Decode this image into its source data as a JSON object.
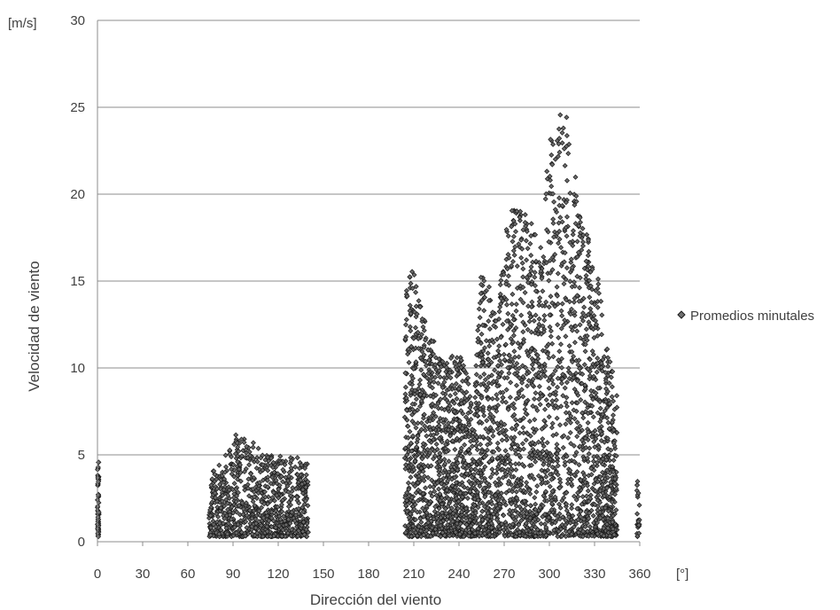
{
  "chart_data": {
    "type": "scatter",
    "xlabel": "Dirección del viento",
    "ylabel": "Velocidad de viento",
    "x_unit": "[°]",
    "y_unit": "[m/s]",
    "xlim": [
      0,
      360
    ],
    "ylim": [
      0,
      30
    ],
    "x_ticks": [
      "0",
      "30",
      "60",
      "90",
      "120",
      "150",
      "180",
      "210",
      "240",
      "270",
      "300",
      "330",
      "360"
    ],
    "y_ticks": [
      "0",
      "5",
      "10",
      "15",
      "20",
      "25",
      "30"
    ],
    "grid": "horizontal",
    "legend_position": "right",
    "marker_color": "#1a1a1a",
    "series": [
      {
        "name": "Promedios minutales",
        "clusters": [
          {
            "x_range": [
              0,
              1
            ],
            "y_range": [
              0.3,
              4.6
            ]
          },
          {
            "x_range": [
              74,
              140
            ],
            "y_range": [
              0.3,
              6.2
            ]
          },
          {
            "x_range": [
              204,
              345
            ],
            "y_range": [
              0.3,
              25.3
            ]
          },
          {
            "x_range": [
              358,
              360
            ],
            "y_range": [
              0.3,
              3.8
            ]
          }
        ],
        "envelope_max": [
          [
            0,
            4.6
          ],
          [
            74,
            3.8
          ],
          [
            85,
            5
          ],
          [
            92,
            6.2
          ],
          [
            100,
            6
          ],
          [
            110,
            5.2
          ],
          [
            120,
            5
          ],
          [
            130,
            4.9
          ],
          [
            140,
            4.7
          ],
          [
            204,
            15.8
          ],
          [
            210,
            15.5
          ],
          [
            215,
            14
          ],
          [
            220,
            12.3
          ],
          [
            230,
            10.2
          ],
          [
            237,
            11
          ],
          [
            243,
            10.5
          ],
          [
            250,
            8
          ],
          [
            255,
            16.4
          ],
          [
            265,
            13
          ],
          [
            272,
            19.2
          ],
          [
            285,
            19
          ],
          [
            295,
            17
          ],
          [
            300,
            23.5
          ],
          [
            305,
            24
          ],
          [
            310,
            25.3
          ],
          [
            315,
            23
          ],
          [
            320,
            19
          ],
          [
            328,
            17
          ],
          [
            333,
            15
          ],
          [
            338,
            11.5
          ],
          [
            345,
            8.5
          ],
          [
            358,
            3.8
          ],
          [
            360,
            2.6
          ]
        ]
      }
    ]
  }
}
